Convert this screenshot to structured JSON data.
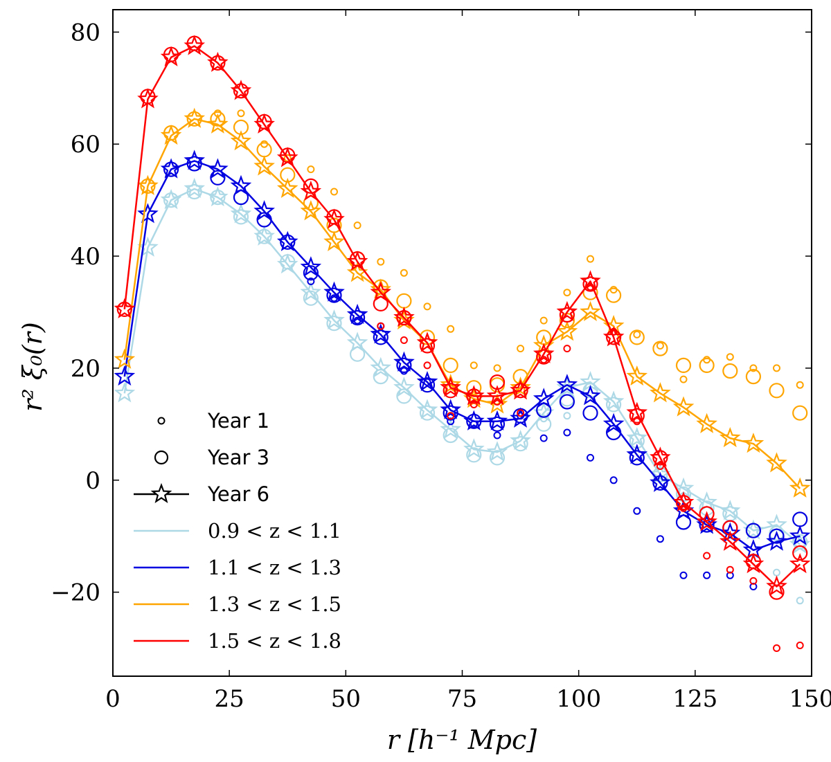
{
  "chart_data": {
    "type": "line",
    "xlabel": "r [h⁻¹ Mpc]",
    "ylabel": "r² ξ₀(r)",
    "xlim": [
      0,
      150
    ],
    "ylim": [
      -35,
      84
    ],
    "xticks": [
      0,
      25,
      50,
      75,
      100,
      125,
      150
    ],
    "xtick_labels": [
      "0",
      "25",
      "50",
      "75",
      "100",
      "125",
      "150"
    ],
    "yticks": [
      -20,
      0,
      20,
      40,
      60,
      80
    ],
    "ytick_labels": [
      "−20",
      "0",
      "20",
      "40",
      "60",
      "80"
    ],
    "legend_position": "bottom-left",
    "legend": {
      "markers": [
        {
          "label": "Year 1",
          "marker": "small-circle"
        },
        {
          "label": "Year 3",
          "marker": "large-circle"
        },
        {
          "label": "Year 6",
          "marker": "star-line"
        }
      ]
    },
    "x": [
      2.5,
      7.5,
      12.5,
      17.5,
      22.5,
      27.5,
      32.5,
      37.5,
      42.5,
      47.5,
      52.5,
      57.5,
      62.5,
      67.5,
      72.5,
      77.5,
      82.5,
      87.5,
      92.5,
      97.5,
      102.5,
      107.5,
      112.5,
      117.5,
      122.5,
      127.5,
      132.5,
      137.5,
      142.5,
      147.5
    ],
    "series": [
      {
        "name": "0.9 < z < 1.1",
        "color": "#add8e6",
        "year6": [
          15.5,
          41.5,
          50,
          52,
          50.5,
          47.5,
          43.5,
          38.5,
          33.5,
          28.5,
          24.5,
          20,
          16.5,
          12.5,
          9,
          5.5,
          5,
          7,
          12,
          16.5,
          17.5,
          14,
          7.5,
          1,
          -1.5,
          -4,
          -5.5,
          -9,
          -8,
          -11.5
        ],
        "year3": [
          null,
          null,
          50,
          51.5,
          50.5,
          47,
          43.5,
          39,
          32.5,
          28,
          22.5,
          18.5,
          15,
          12,
          8,
          4.5,
          4,
          6.5,
          10,
          14.5,
          16,
          13.5,
          7,
          1,
          -2.5,
          -5,
          -6,
          -9,
          -9.5,
          -11
        ],
        "year1": [
          null,
          null,
          null,
          null,
          null,
          null,
          null,
          null,
          null,
          null,
          null,
          null,
          null,
          null,
          null,
          null,
          null,
          null,
          11,
          11.5,
          null,
          null,
          null,
          null,
          null,
          null,
          null,
          null,
          -16.5,
          -21.5
        ]
      },
      {
        "name": "1.1 < z < 1.3",
        "color": "#0000e0",
        "year6": [
          18.5,
          47.5,
          55.5,
          57,
          55.5,
          52.5,
          48,
          42.5,
          38,
          33.5,
          29.5,
          26,
          21,
          17.5,
          12.5,
          10.5,
          10.5,
          11,
          14.5,
          17,
          15,
          10,
          4.5,
          -0.5,
          -5.5,
          -8,
          -9.5,
          -12.5,
          -11,
          -10
        ],
        "year3": [
          null,
          null,
          55.5,
          56.5,
          54,
          50.5,
          46.5,
          42.5,
          37,
          33,
          29,
          25.5,
          20.5,
          17,
          12,
          10.5,
          10,
          11.5,
          12.5,
          14,
          12,
          8.5,
          4,
          -0.5,
          -7.5,
          -8,
          -8.5,
          -9,
          -10,
          -7
        ],
        "year1": [
          null,
          null,
          null,
          null,
          null,
          null,
          null,
          null,
          35.5,
          32.5,
          28.5,
          27.5,
          19.5,
          17.5,
          10.5,
          10,
          8,
          11.5,
          7.5,
          8.5,
          4,
          0,
          -5.5,
          -10.5,
          -17,
          -17,
          -17,
          -19,
          null,
          null
        ]
      },
      {
        "name": "1.3 < z < 1.5",
        "color": "#ffa500",
        "year6": [
          21.5,
          52.5,
          61.5,
          64.5,
          63.5,
          60.5,
          56,
          52,
          48,
          42.5,
          37,
          34,
          28.5,
          24.5,
          17,
          14.5,
          13.5,
          16.5,
          24,
          26.5,
          30,
          27.5,
          18.5,
          15.5,
          13,
          10,
          7.5,
          6.5,
          3,
          -1.5
        ],
        "year3": [
          null,
          52.5,
          62,
          64.5,
          64.5,
          63,
          59,
          54.5,
          49.5,
          45.5,
          39.5,
          34.5,
          32,
          25.5,
          20.5,
          16.5,
          17,
          18.5,
          25.5,
          28.5,
          33.5,
          33,
          25.5,
          23.5,
          20.5,
          20.5,
          19.5,
          18.5,
          16,
          12
        ],
        "year1": [
          null,
          null,
          null,
          null,
          65.5,
          65.5,
          60,
          57.5,
          55.5,
          51.5,
          45.5,
          39,
          37,
          31,
          27,
          20.5,
          20,
          23.5,
          28.5,
          33.5,
          39.5,
          34,
          26,
          24,
          18,
          21.5,
          22,
          20,
          20,
          17
        ]
      },
      {
        "name": "1.5 < z < 1.8",
        "color": "#ff0000",
        "year6": [
          30.5,
          68,
          75.5,
          77.5,
          74.5,
          69.5,
          63.5,
          57.5,
          51.5,
          46.5,
          39,
          33.5,
          29,
          24.5,
          16.5,
          15,
          15,
          16,
          22.5,
          30,
          35.5,
          25.5,
          12,
          4,
          -4,
          -7.5,
          -11,
          -15,
          -19,
          -15
        ],
        "year3": [
          30.5,
          68.5,
          76,
          78,
          74.5,
          69.5,
          64,
          58,
          52.5,
          47,
          39.5,
          31.5,
          29,
          24,
          16,
          15,
          17.5,
          16,
          22,
          29.5,
          35,
          25.5,
          11.5,
          4,
          -4,
          -6,
          -8.5,
          -14.5,
          -20,
          -13
        ],
        "year1": [
          null,
          null,
          null,
          null,
          null,
          null,
          null,
          null,
          null,
          null,
          null,
          27.5,
          25,
          20.5,
          11.5,
          13.5,
          14,
          12,
          21.5,
          23.5,
          34.5,
          26.5,
          10.5,
          2.5,
          -5,
          -13.5,
          -16,
          -18,
          -30,
          -29.5
        ]
      }
    ]
  }
}
